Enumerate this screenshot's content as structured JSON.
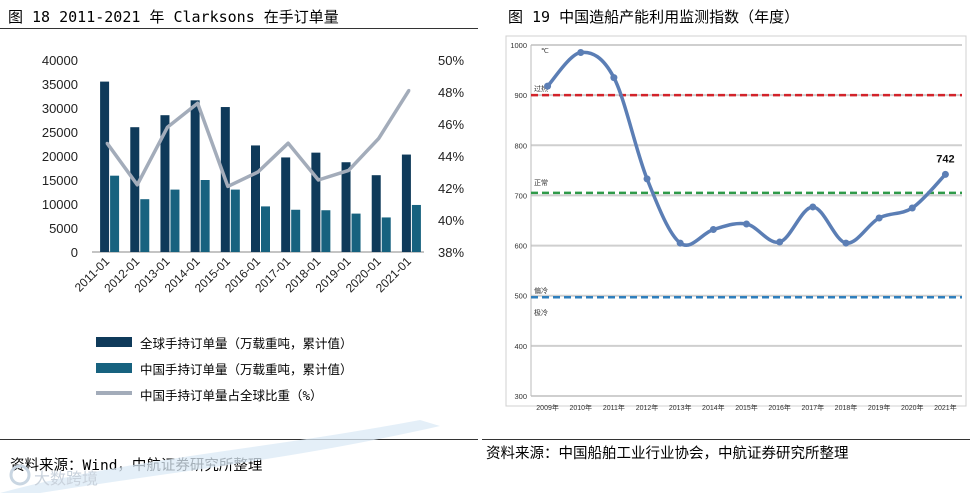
{
  "left_panel": {
    "title": "图 18 2011-2021 年 Clarksons 在手订单量",
    "source": "资料来源：Wind，中航证券研究所整理",
    "watermark": "大数跨境",
    "chart_data": {
      "type": "bar",
      "categories": [
        "2011-01",
        "2012-01",
        "2013-01",
        "2014-01",
        "2015-01",
        "2016-01",
        "2017-01",
        "2018-01",
        "2019-01",
        "2020-01",
        "2021-01"
      ],
      "series": [
        {
          "name": "全球手持订单量（万载重吨，累计值）",
          "type": "bar",
          "axis": "left",
          "color": "#0f3a5a",
          "values": [
            35500,
            26000,
            28500,
            31600,
            30200,
            22200,
            19700,
            20700,
            18700,
            16000,
            20300
          ]
        },
        {
          "name": "中国手持订单量（万载重吨，累计值）",
          "type": "bar",
          "axis": "left",
          "color": "#17627f",
          "values": [
            15900,
            11000,
            13000,
            15000,
            13000,
            9500,
            8800,
            8700,
            8000,
            7200,
            9800
          ]
        },
        {
          "name": "中国手持订单量占全球比重（%）",
          "type": "line",
          "axis": "right",
          "color": "#a3acba",
          "values": [
            44.8,
            42.2,
            45.8,
            47.3,
            42.1,
            43.0,
            44.8,
            42.5,
            43.1,
            45.1,
            48.1
          ]
        }
      ],
      "ylim": [
        0,
        40000
      ],
      "yticks": [
        "0",
        "5000",
        "10000",
        "15000",
        "20000",
        "25000",
        "30000",
        "35000",
        "40000"
      ],
      "y2lim": [
        38,
        50
      ],
      "y2ticks": [
        "38%",
        "40%",
        "42%",
        "44%",
        "46%",
        "48%",
        "50%"
      ]
    }
  },
  "right_panel": {
    "title": "图 19 中国造船产能利用监测指数（年度）",
    "source": "资料来源：中国船舶工业行业协会，中航证券研究所整理",
    "chart_data": {
      "type": "line",
      "x": [
        "2009年",
        "2010年",
        "2011年",
        "2012年",
        "2013年",
        "2014年",
        "2015年",
        "2016年",
        "2017年",
        "2018年",
        "2019年",
        "2020年",
        "2021年"
      ],
      "values": [
        918,
        985,
        935,
        733,
        605,
        632,
        643,
        607,
        677,
        605,
        655,
        675,
        742
      ],
      "ylim": [
        300,
        1000
      ],
      "yticks": [
        "300",
        "400",
        "500",
        "600",
        "700",
        "800",
        "900",
        "1000"
      ],
      "end_label": "742",
      "line_color": "#5b7eb5",
      "reference_lines": [
        {
          "value": 900,
          "label": "过热",
          "color": "#d2232a"
        },
        {
          "value": 705,
          "label": "正常",
          "color": "#2f9a49"
        },
        {
          "value": 497,
          "label": "偏冷",
          "color": "#2f7fbd"
        }
      ],
      "extra_labels": [
        {
          "label": "℃"
        },
        {
          "label": "极冷"
        }
      ]
    }
  }
}
